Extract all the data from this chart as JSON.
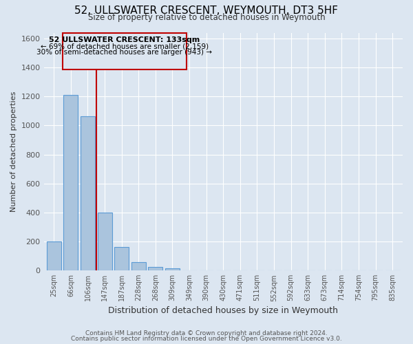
{
  "title": "52, ULLSWATER CRESCENT, WEYMOUTH, DT3 5HF",
  "subtitle": "Size of property relative to detached houses in Weymouth",
  "xlabel": "Distribution of detached houses by size in Weymouth",
  "ylabel": "Number of detached properties",
  "footer_lines": [
    "Contains HM Land Registry data © Crown copyright and database right 2024.",
    "Contains public sector information licensed under the Open Government Licence v3.0."
  ],
  "bar_labels": [
    "25sqm",
    "66sqm",
    "106sqm",
    "147sqm",
    "187sqm",
    "228sqm",
    "268sqm",
    "309sqm",
    "349sqm",
    "390sqm",
    "430sqm",
    "471sqm",
    "511sqm",
    "552sqm",
    "592sqm",
    "633sqm",
    "673sqm",
    "714sqm",
    "754sqm",
    "795sqm",
    "835sqm"
  ],
  "bar_values": [
    200,
    1210,
    1065,
    400,
    160,
    58,
    25,
    15,
    0,
    0,
    0,
    0,
    0,
    0,
    0,
    0,
    0,
    0,
    0,
    0,
    0
  ],
  "bar_color": "#aac4dd",
  "bar_edge_color": "#5b9bd5",
  "bg_color": "#dce6f1",
  "grid_color": "#ffffff",
  "annotation_box_color": "#c00000",
  "annotation_title": "52 ULLSWATER CRESCENT: 133sqm",
  "annotation_line1": "← 69% of detached houses are smaller (2,159)",
  "annotation_line2": "30% of semi-detached houses are larger (943) →",
  "ylim": [
    0,
    1640
  ],
  "yticks": [
    0,
    200,
    400,
    600,
    800,
    1000,
    1200,
    1400,
    1600
  ]
}
